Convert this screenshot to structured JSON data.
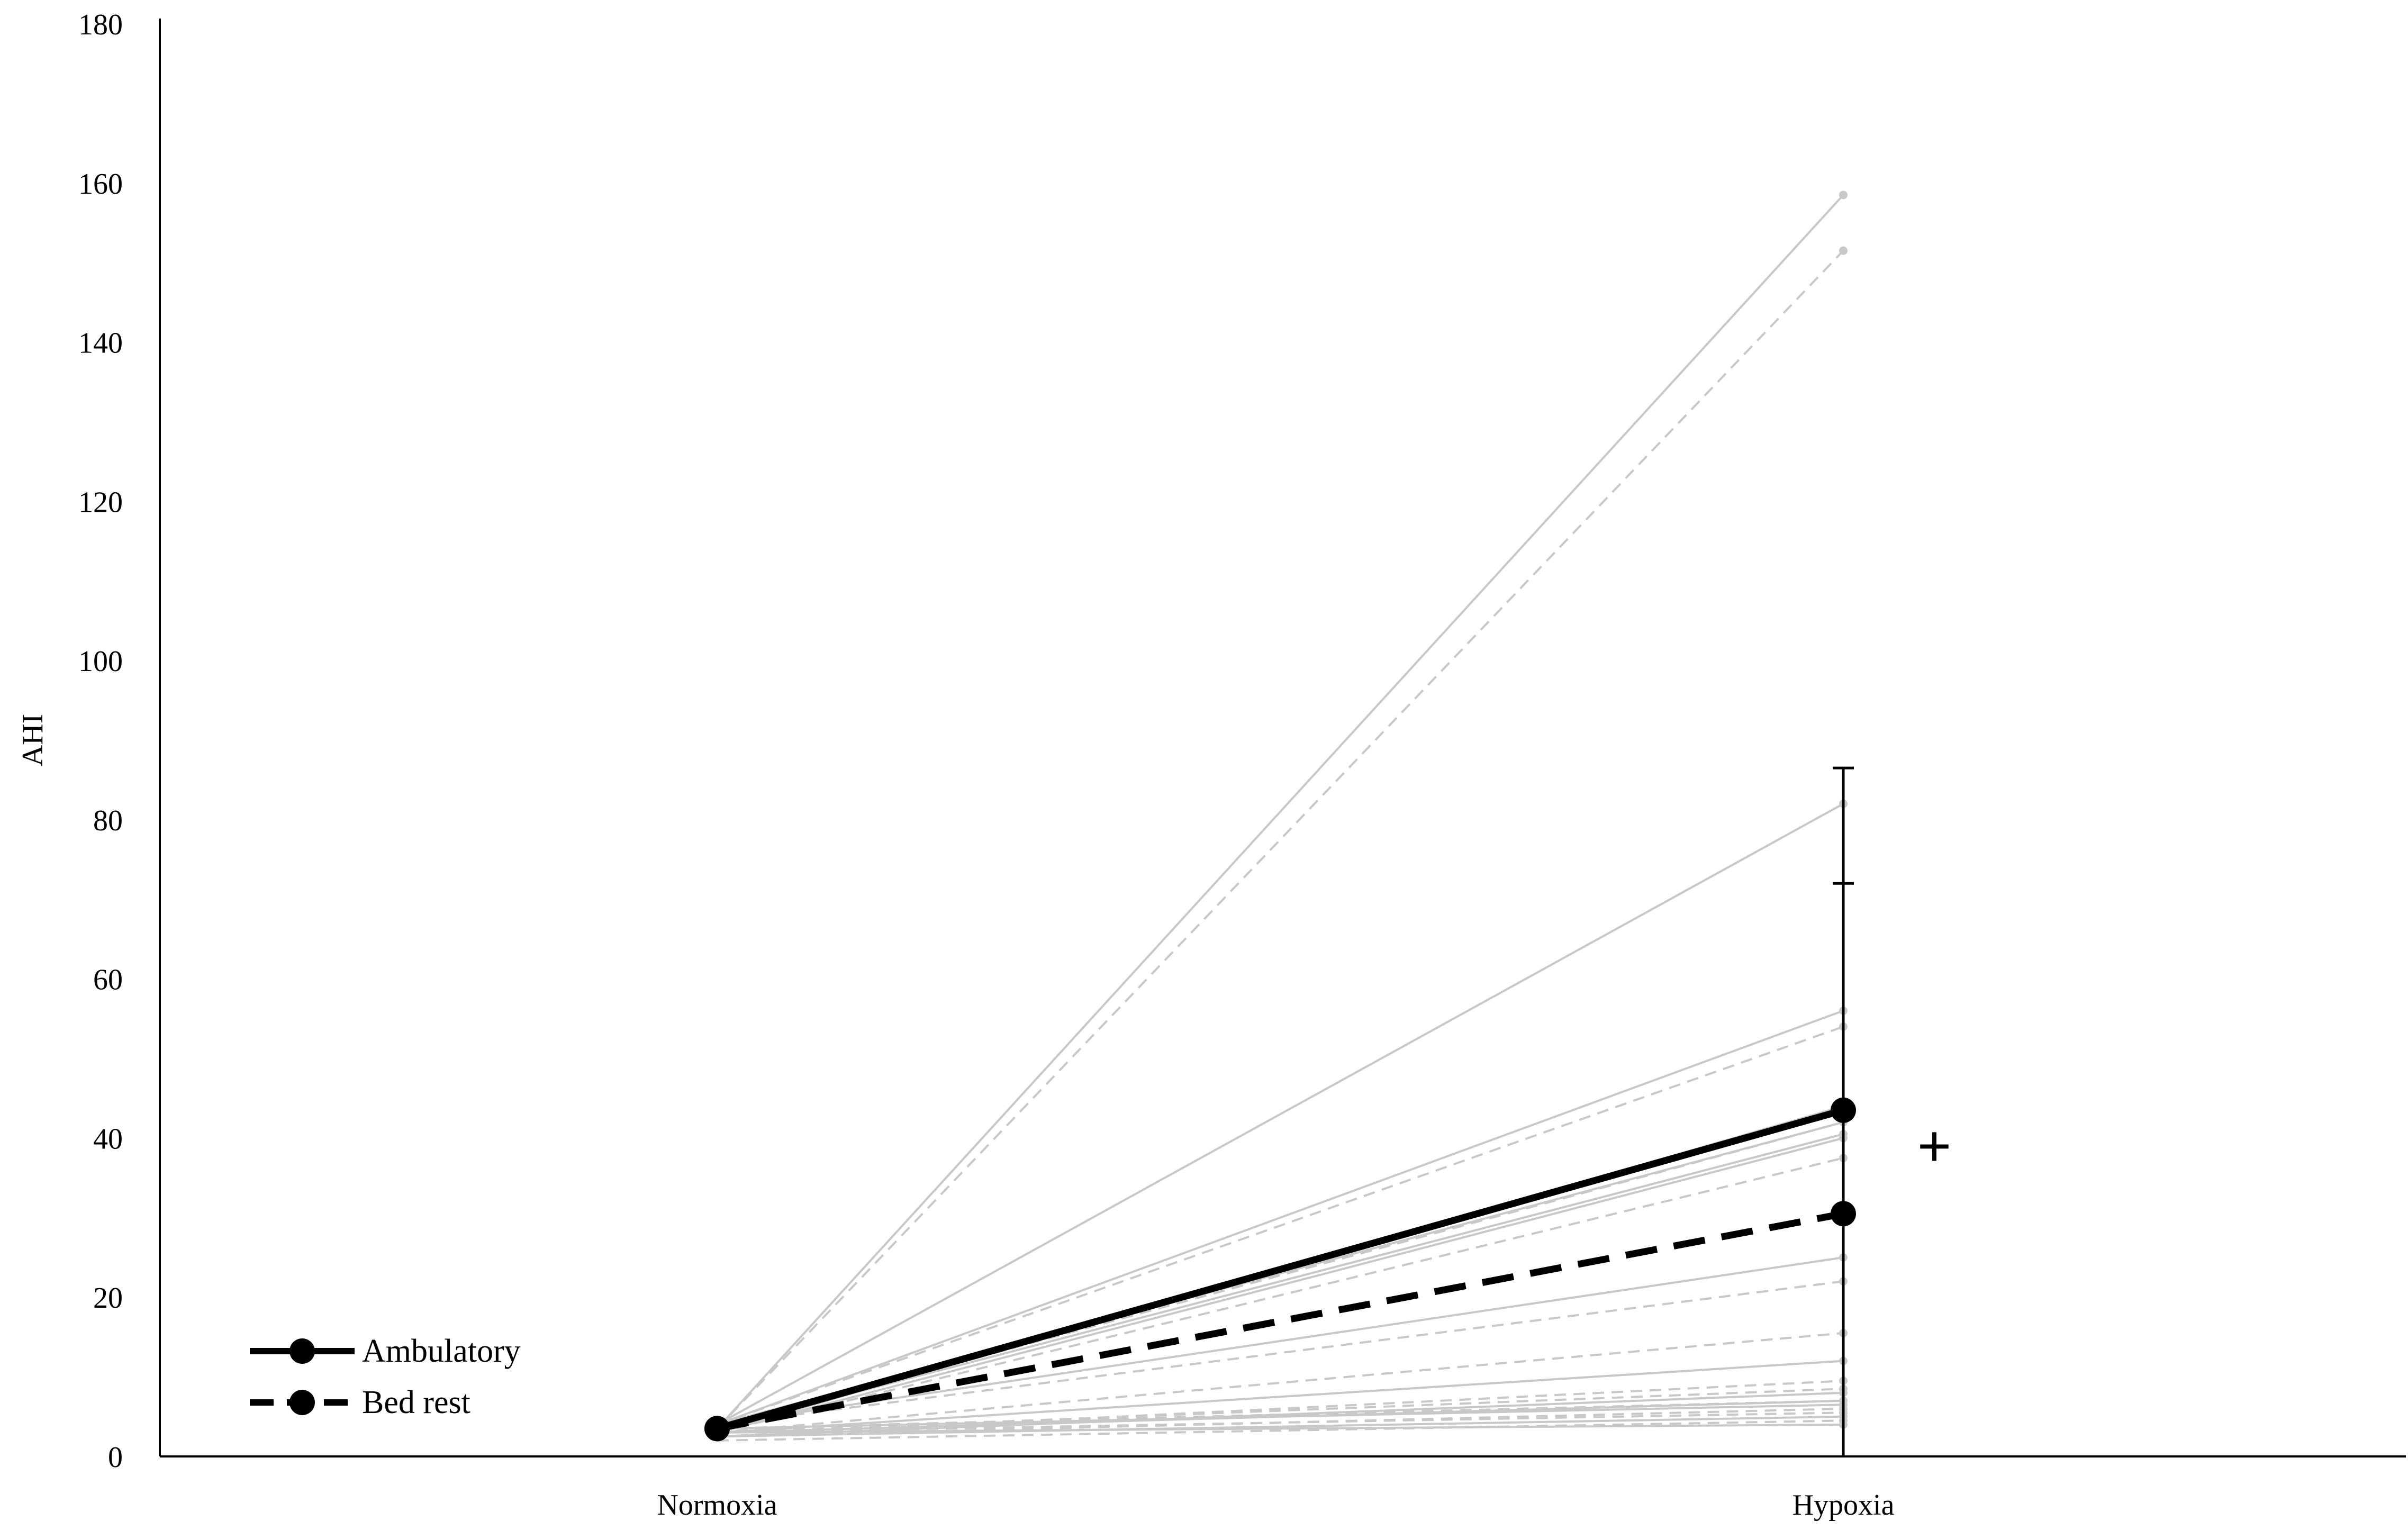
{
  "chart_data": {
    "type": "line",
    "title": "",
    "xlabel": "",
    "ylabel": "AHI",
    "categories": [
      "Normoxia",
      "Hypoxia"
    ],
    "ylim": [
      0,
      180
    ],
    "yticks": [
      0,
      20,
      40,
      60,
      80,
      100,
      120,
      140,
      160,
      180
    ],
    "grid": false,
    "legend_position": "bottom-left",
    "series": [
      {
        "name": "Ambulatory",
        "style": "solid",
        "color": "#000000",
        "values": [
          3.5,
          43.5
        ],
        "error_upper": [
          null,
          86.5
        ]
      },
      {
        "name": "Bed rest",
        "style": "dashed",
        "color": "#000000",
        "values": [
          3.5,
          30.5
        ],
        "error_upper": [
          null,
          72.0
        ]
      }
    ],
    "individuals_ambulatory": [
      [
        3.5,
        158.5
      ],
      [
        4.0,
        82.0
      ],
      [
        4.0,
        56.0
      ],
      [
        3.0,
        44.0
      ],
      [
        4.0,
        42.0
      ],
      [
        3.5,
        40.5
      ],
      [
        3.0,
        40.0
      ],
      [
        4.0,
        25.0
      ],
      [
        3.0,
        12.0
      ],
      [
        2.5,
        8.0
      ],
      [
        3.0,
        7.0
      ],
      [
        3.5,
        6.5
      ],
      [
        2.5,
        5.0
      ],
      [
        3.0,
        4.0
      ]
    ],
    "individuals_bed_rest": [
      [
        3.5,
        151.5
      ],
      [
        4.0,
        54.0
      ],
      [
        3.5,
        42.0
      ],
      [
        3.0,
        37.5
      ],
      [
        4.0,
        22.0
      ],
      [
        3.0,
        15.5
      ],
      [
        2.5,
        9.5
      ],
      [
        3.0,
        8.5
      ],
      [
        3.5,
        7.0
      ],
      [
        2.5,
        6.0
      ],
      [
        3.0,
        5.5
      ],
      [
        2.0,
        4.5
      ]
    ],
    "individual_color": "#c8c8c8",
    "significance_marker": "+"
  }
}
